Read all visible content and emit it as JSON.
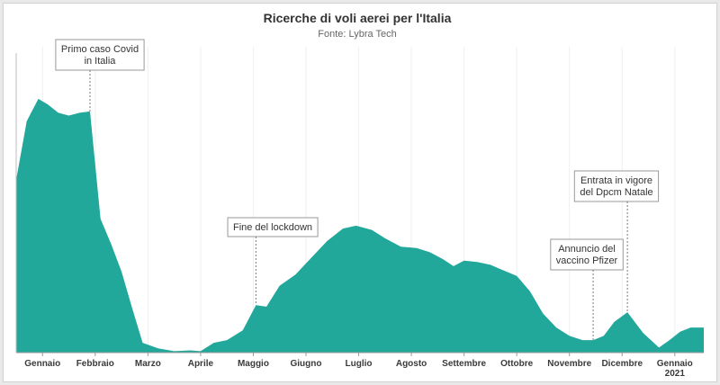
{
  "chart_data": {
    "type": "area",
    "title": "Ricerche di voli aerei per l'Italia",
    "subtitle": "Fonte: Lybra Tech",
    "color": "#22a79b",
    "xlabel": "",
    "ylabel": "",
    "x_ticks": [
      {
        "x": 0.5,
        "label": [
          "Gennaio"
        ]
      },
      {
        "x": 1.5,
        "label": [
          "Febbraio"
        ]
      },
      {
        "x": 2.5,
        "label": [
          "Marzo"
        ]
      },
      {
        "x": 3.5,
        "label": [
          "Aprile"
        ]
      },
      {
        "x": 4.5,
        "label": [
          "Maggio"
        ]
      },
      {
        "x": 5.5,
        "label": [
          "Giugno"
        ]
      },
      {
        "x": 6.5,
        "label": [
          "Luglio"
        ]
      },
      {
        "x": 7.5,
        "label": [
          "Agosto"
        ]
      },
      {
        "x": 8.5,
        "label": [
          "Settembre"
        ]
      },
      {
        "x": 9.5,
        "label": [
          "Ottobre"
        ]
      },
      {
        "x": 10.5,
        "label": [
          "Novembre"
        ]
      },
      {
        "x": 11.5,
        "label": [
          "Dicembre"
        ]
      },
      {
        "x": 12.5,
        "label": [
          "Gennaio",
          "2021"
        ]
      }
    ],
    "xlim": [
      0,
      13.05
    ],
    "ylim": [
      0,
      100
    ],
    "points": [
      [
        0.0,
        62
      ],
      [
        0.2,
        83
      ],
      [
        0.42,
        91
      ],
      [
        0.6,
        89
      ],
      [
        0.8,
        86
      ],
      [
        1.0,
        85
      ],
      [
        1.2,
        86
      ],
      [
        1.4,
        86.5
      ],
      [
        1.6,
        48
      ],
      [
        1.8,
        39
      ],
      [
        2.0,
        29
      ],
      [
        2.2,
        16
      ],
      [
        2.4,
        3.5
      ],
      [
        2.7,
        1.5
      ],
      [
        3.0,
        0.5
      ],
      [
        3.3,
        0.8
      ],
      [
        3.5,
        0.5
      ],
      [
        3.75,
        3.5
      ],
      [
        4.0,
        4.5
      ],
      [
        4.3,
        8
      ],
      [
        4.55,
        17
      ],
      [
        4.75,
        16.5
      ],
      [
        5.0,
        24
      ],
      [
        5.3,
        28
      ],
      [
        5.6,
        34
      ],
      [
        5.9,
        40
      ],
      [
        6.2,
        44.5
      ],
      [
        6.45,
        45.5
      ],
      [
        6.75,
        44
      ],
      [
        7.0,
        41
      ],
      [
        7.3,
        38
      ],
      [
        7.6,
        37.5
      ],
      [
        7.85,
        36
      ],
      [
        8.1,
        33.5
      ],
      [
        8.3,
        31
      ],
      [
        8.5,
        33
      ],
      [
        8.75,
        32.5
      ],
      [
        9.0,
        31.5
      ],
      [
        9.25,
        29.5
      ],
      [
        9.5,
        27.5
      ],
      [
        9.75,
        22
      ],
      [
        10.0,
        14
      ],
      [
        10.25,
        9
      ],
      [
        10.5,
        6
      ],
      [
        10.75,
        4.5
      ],
      [
        10.95,
        4.5
      ],
      [
        11.15,
        6
      ],
      [
        11.35,
        11
      ],
      [
        11.6,
        14.5
      ],
      [
        11.9,
        7
      ],
      [
        12.2,
        1.8
      ],
      [
        12.4,
        4.5
      ],
      [
        12.6,
        7.5
      ],
      [
        12.8,
        9
      ],
      [
        13.05,
        9
      ]
    ],
    "annotations": [
      {
        "x": 1.4,
        "y": 86.5,
        "lines": [
          "Primo caso Covid",
          "in Italia"
        ]
      },
      {
        "x": 4.55,
        "y": 17,
        "lines": [
          "Fine del lockdown"
        ]
      },
      {
        "x": 10.95,
        "y": 4.5,
        "lines": [
          "Annuncio del",
          "vaccino Pfizer"
        ]
      },
      {
        "x": 11.6,
        "y": 14.5,
        "lines": [
          "Entrata in vigore",
          "del Dpcm Natale"
        ]
      }
    ]
  }
}
